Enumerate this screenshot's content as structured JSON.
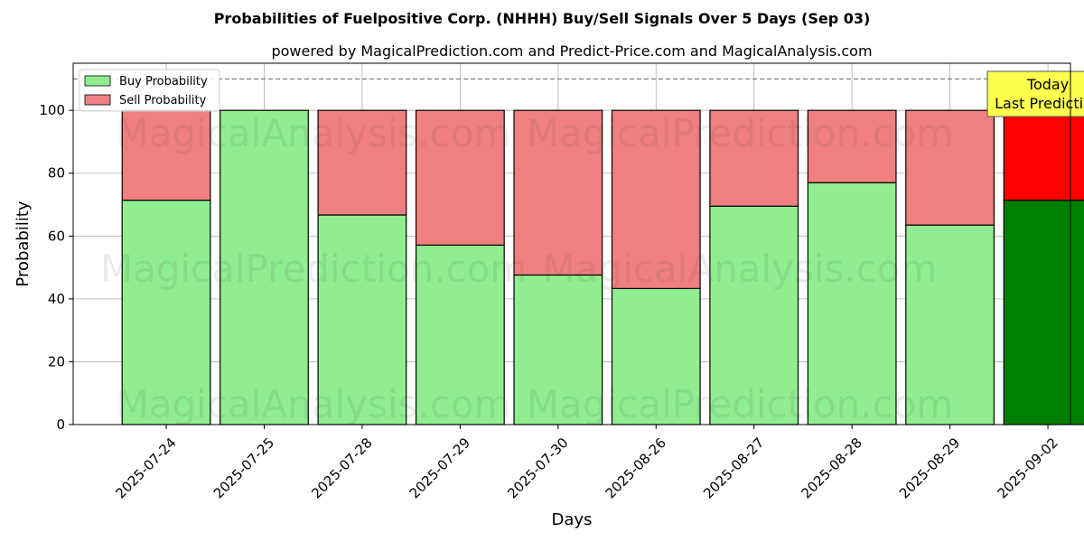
{
  "chart_data": {
    "type": "bar",
    "stacked": true,
    "title": "Probabilities of Fuelpositive Corp. (NHHH) Buy/Sell Signals Over 5 Days (Sep 03)",
    "subtitle": "powered by MagicalPrediction.com and Predict-Price.com and MagicalAnalysis.com",
    "xlabel": "Days",
    "ylabel": "Probability",
    "ylim": [
      0,
      115
    ],
    "yticks": [
      0,
      20,
      40,
      60,
      80,
      100
    ],
    "grid": true,
    "legend_position": "top-left",
    "threshold_line": 110,
    "categories": [
      "2025-07-24",
      "2025-07-25",
      "2025-07-28",
      "2025-07-29",
      "2025-07-30",
      "2025-08-26",
      "2025-08-27",
      "2025-08-28",
      "2025-08-29",
      "2025-09-02"
    ],
    "series": [
      {
        "name": "Buy Probability",
        "color": "#90ee90",
        "highlight_color": "#008000",
        "values": [
          71.4,
          100,
          66.7,
          57.1,
          47.6,
          43.3,
          69.5,
          77.0,
          63.5,
          71.4
        ]
      },
      {
        "name": "Sell Probability",
        "color": "#f08080",
        "highlight_color": "#ff0000",
        "values": [
          28.6,
          0,
          33.3,
          42.9,
          52.4,
          56.7,
          30.5,
          23.0,
          36.5,
          28.6
        ]
      }
    ],
    "highlight_index": 9,
    "annotation": {
      "lines": [
        "Today",
        "Last Prediction"
      ],
      "color": "#ffff4d"
    },
    "watermarks": [
      "MagicalAnalysis.com",
      "MagicalPrediction.com"
    ]
  }
}
